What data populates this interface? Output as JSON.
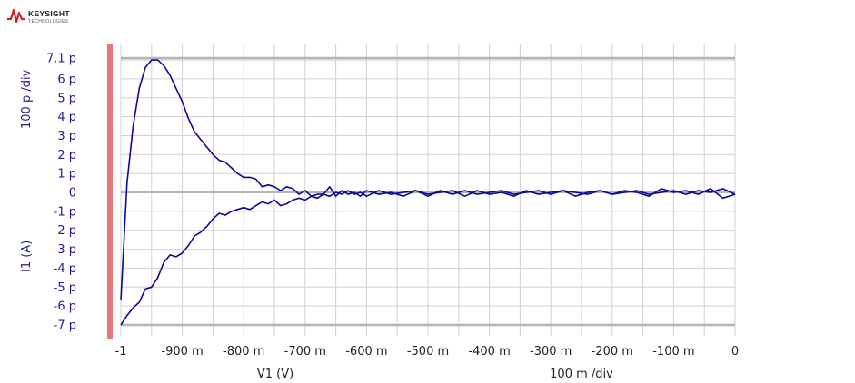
{
  "logo": {
    "brand": "KEYSIGHT",
    "sub": "TECHNOLOGIES",
    "color": "#d0202a"
  },
  "chart_data": {
    "type": "line",
    "xlabel": "V1 (V)",
    "xdiv_label": "100 m /div",
    "ylabel": "I1 (A)",
    "ydiv_label": "100 p /div",
    "xlim": [
      -1,
      0
    ],
    "ylim": [
      -7e-12,
      7.1e-12
    ],
    "x_ticks": [
      {
        "v": -1,
        "label": "-1"
      },
      {
        "v": -0.9,
        "label": "-900 m"
      },
      {
        "v": -0.8,
        "label": "-800 m"
      },
      {
        "v": -0.7,
        "label": "-700 m"
      },
      {
        "v": -0.6,
        "label": "-600 m"
      },
      {
        "v": -0.5,
        "label": "-500 m"
      },
      {
        "v": -0.4,
        "label": "-400 m"
      },
      {
        "v": -0.3,
        "label": "-300 m"
      },
      {
        "v": -0.2,
        "label": "-200 m"
      },
      {
        "v": -0.1,
        "label": "-100 m"
      },
      {
        "v": 0,
        "label": "0"
      }
    ],
    "y_ticks": [
      {
        "v": 7.1e-12,
        "label": "7.1 p"
      },
      {
        "v": 6e-12,
        "label": "6 p"
      },
      {
        "v": 5e-12,
        "label": "5 p"
      },
      {
        "v": 4e-12,
        "label": "4 p"
      },
      {
        "v": 3e-12,
        "label": "3 p"
      },
      {
        "v": 2e-12,
        "label": "2 p"
      },
      {
        "v": 1e-12,
        "label": "1 p"
      },
      {
        "v": 0,
        "label": "0"
      },
      {
        "v": -1e-12,
        "label": "-1 p"
      },
      {
        "v": -2e-12,
        "label": "-2 p"
      },
      {
        "v": -3e-12,
        "label": "-3 p"
      },
      {
        "v": -4e-12,
        "label": "-4 p"
      },
      {
        "v": -5e-12,
        "label": "-5 p"
      },
      {
        "v": -6e-12,
        "label": "-6 p"
      },
      {
        "v": -7e-12,
        "label": "-7 p"
      }
    ],
    "grid": true,
    "colors": {
      "series": "#0a0a96",
      "grid": "#d0d0d0",
      "zero_line": "#b5b5b5",
      "left_marker": "#e87878"
    },
    "series": [
      {
        "x": [
          -1,
          -0.99,
          -0.98,
          -0.97,
          -0.96,
          -0.95,
          -0.94,
          -0.93,
          -0.92,
          -0.91,
          -0.9,
          -0.89,
          -0.88,
          -0.87,
          -0.86,
          -0.85,
          -0.84,
          -0.83,
          -0.82,
          -0.81,
          -0.8,
          -0.79,
          -0.78,
          -0.77,
          -0.76,
          -0.75,
          -0.74,
          -0.73,
          -0.72,
          -0.71,
          -0.7,
          -0.69,
          -0.68,
          -0.67,
          -0.66,
          -0.65,
          -0.64,
          -0.63,
          -0.62,
          -0.61,
          -0.6,
          -0.58,
          -0.56,
          -0.54,
          -0.52,
          -0.5,
          -0.48,
          -0.46,
          -0.44,
          -0.42,
          -0.4,
          -0.38,
          -0.36,
          -0.34,
          -0.32,
          -0.3,
          -0.28,
          -0.26,
          -0.24,
          -0.22,
          -0.2,
          -0.18,
          -0.16,
          -0.14,
          -0.12,
          -0.1,
          -0.08,
          -0.06,
          -0.04,
          -0.02,
          0
        ],
        "y": [
          -5.7e-12,
          5e-13,
          3.5e-12,
          5.5e-12,
          6.6e-12,
          7e-12,
          7e-12,
          6.7e-12,
          6.2e-12,
          5.5e-12,
          4.8e-12,
          3.9e-12,
          3.2e-12,
          2.8e-12,
          2.4e-12,
          2e-12,
          1.7e-12,
          1.6e-12,
          1.3e-12,
          1e-12,
          8e-13,
          8e-13,
          7e-13,
          3e-13,
          4e-13,
          3e-13,
          1e-13,
          3e-13,
          2e-13,
          -1e-13,
          1e-13,
          -2e-13,
          -3e-13,
          -1e-13,
          3e-13,
          -2e-13,
          1e-13,
          -1e-13,
          0.0,
          -2e-13,
          1e-13,
          -1e-13,
          0.0,
          -2e-13,
          1e-13,
          -1e-13,
          0.0,
          1e-13,
          -2e-13,
          1e-13,
          -1e-13,
          0.0,
          -2e-13,
          1e-13,
          -1e-13,
          0.0,
          1e-13,
          -2e-13,
          0.0,
          1e-13,
          -1e-13,
          1e-13,
          0.0,
          -2e-13,
          2e-13,
          0.0,
          1e-13,
          -1e-13,
          2e-13,
          -3e-13,
          -1e-13
        ]
      },
      {
        "x": [
          -1,
          -0.99,
          -0.98,
          -0.97,
          -0.96,
          -0.95,
          -0.94,
          -0.93,
          -0.92,
          -0.91,
          -0.9,
          -0.89,
          -0.88,
          -0.87,
          -0.86,
          -0.85,
          -0.84,
          -0.83,
          -0.82,
          -0.81,
          -0.8,
          -0.79,
          -0.78,
          -0.77,
          -0.76,
          -0.75,
          -0.74,
          -0.73,
          -0.72,
          -0.71,
          -0.7,
          -0.69,
          -0.68,
          -0.67,
          -0.66,
          -0.65,
          -0.64,
          -0.63,
          -0.62,
          -0.61,
          -0.6,
          -0.58,
          -0.56,
          -0.54,
          -0.52,
          -0.5,
          -0.48,
          -0.46,
          -0.44,
          -0.42,
          -0.4,
          -0.38,
          -0.36,
          -0.34,
          -0.32,
          -0.3,
          -0.28,
          -0.26,
          -0.24,
          -0.22,
          -0.2,
          -0.18,
          -0.16,
          -0.14,
          -0.12,
          -0.1,
          -0.08,
          -0.06,
          -0.04,
          -0.02,
          0
        ],
        "y": [
          -7e-12,
          -6.5e-12,
          -6.1e-12,
          -5.8e-12,
          -5.1e-12,
          -5e-12,
          -4.5e-12,
          -3.7e-12,
          -3.3e-12,
          -3.4e-12,
          -3.2e-12,
          -2.8e-12,
          -2.3e-12,
          -2.1e-12,
          -1.8e-12,
          -1.4e-12,
          -1.1e-12,
          -1.2e-12,
          -1e-12,
          -9e-13,
          -8e-13,
          -9e-13,
          -7e-13,
          -5e-13,
          -6e-13,
          -4e-13,
          -7e-13,
          -6e-13,
          -4e-13,
          -3e-13,
          -4e-13,
          -2e-13,
          -1e-13,
          -1e-13,
          -2e-13,
          0.0,
          -1e-13,
          1e-13,
          -1e-13,
          0.0,
          -2e-13,
          1e-13,
          -1e-13,
          0.0,
          1e-13,
          -2e-13,
          1e-13,
          -1e-13,
          1e-13,
          -1e-13,
          0.0,
          1e-13,
          -1e-13,
          0.0,
          1e-13,
          -1e-13,
          1e-13,
          0.0,
          -1e-13,
          1e-13,
          -1e-13,
          0.0,
          1e-13,
          -1e-13,
          0.0,
          1e-13,
          -1e-13,
          1e-13,
          0.0,
          2e-13,
          -1e-13
        ]
      }
    ]
  }
}
